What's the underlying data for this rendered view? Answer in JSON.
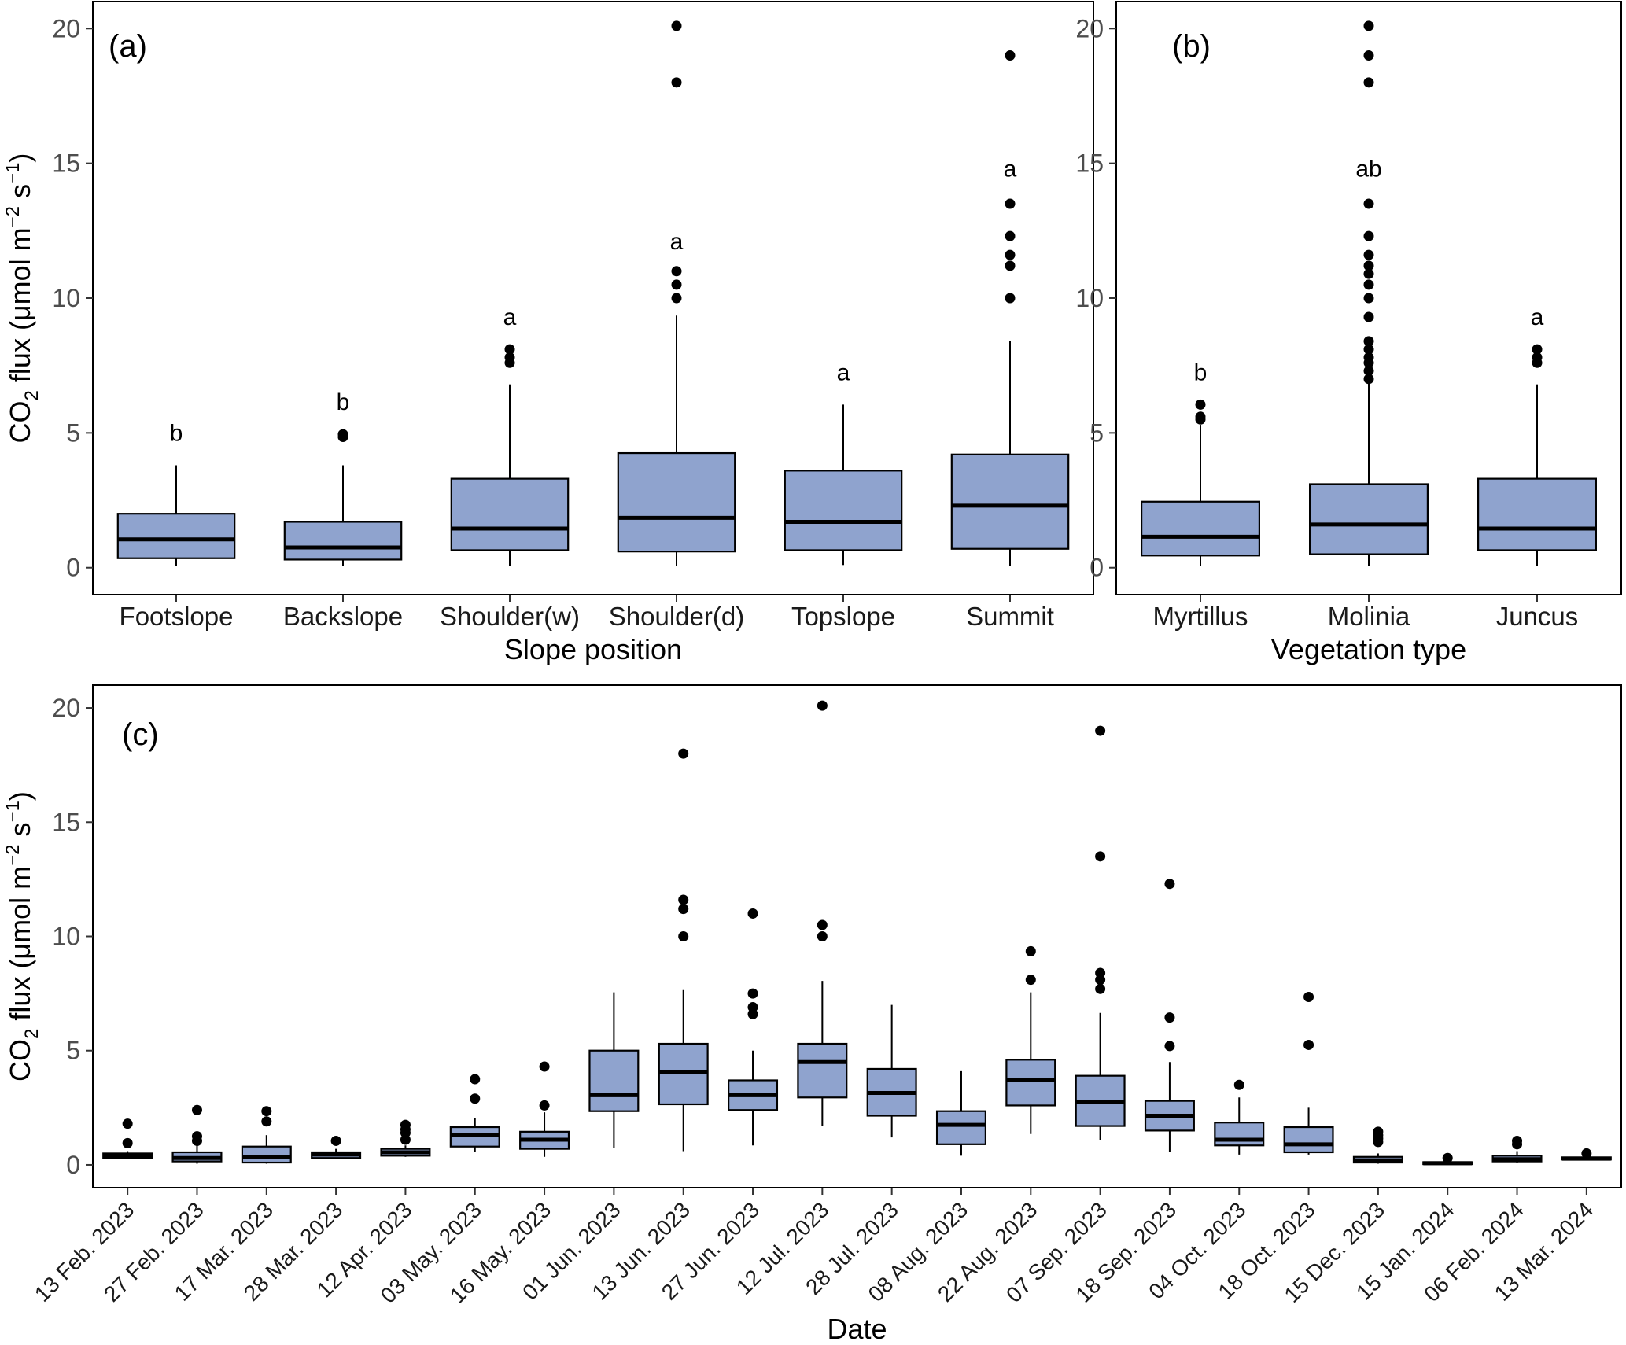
{
  "colors": {
    "box_fill": "#8FA3CE",
    "box_stroke": "#000000",
    "point": "#000000"
  },
  "chart_data": [
    {
      "panel": "(a)",
      "type": "boxplot",
      "xlabel": "Slope position",
      "ylabel": "CO2 flux (μmol m−2 s−1)",
      "ylim": [
        -1,
        21
      ],
      "yticks": [
        0,
        5,
        10,
        15,
        20
      ],
      "categories": [
        "Footslope",
        "Backslope",
        "Shoulder(w)",
        "Shoulder(d)",
        "Topslope",
        "Summit"
      ],
      "boxes": [
        {
          "lo": 0.05,
          "q1": 0.35,
          "med": 1.05,
          "q3": 2.0,
          "hi": 3.8,
          "out": [],
          "sig": "b"
        },
        {
          "lo": 0.05,
          "q1": 0.3,
          "med": 0.75,
          "q3": 1.7,
          "hi": 3.8,
          "out": [
            4.85,
            4.95
          ],
          "sig": "b"
        },
        {
          "lo": 0.05,
          "q1": 0.65,
          "med": 1.45,
          "q3": 3.3,
          "hi": 6.8,
          "out": [
            7.6,
            7.8,
            8.1
          ],
          "sig": "a"
        },
        {
          "lo": 0.05,
          "q1": 0.6,
          "med": 1.85,
          "q3": 4.25,
          "hi": 9.35,
          "out": [
            10.0,
            10.5,
            11.0,
            18.0,
            20.1
          ],
          "sig": "a"
        },
        {
          "lo": 0.1,
          "q1": 0.65,
          "med": 1.7,
          "q3": 3.6,
          "hi": 6.05,
          "out": [],
          "sig": "a"
        },
        {
          "lo": 0.05,
          "q1": 0.7,
          "med": 2.3,
          "q3": 4.2,
          "hi": 8.4,
          "out": [
            10.0,
            11.2,
            11.6,
            12.3,
            13.5,
            19.0
          ],
          "sig": "a"
        }
      ]
    },
    {
      "panel": "(b)",
      "type": "boxplot",
      "xlabel": "Vegetation type",
      "ylabel": "",
      "ylim": [
        -1,
        21
      ],
      "yticks": [
        0,
        5,
        10,
        15,
        20
      ],
      "categories": [
        "Myrtillus",
        "Molinia",
        "Juncus"
      ],
      "boxes": [
        {
          "lo": 0.05,
          "q1": 0.45,
          "med": 1.15,
          "q3": 2.45,
          "hi": 5.3,
          "out": [
            5.5,
            5.6,
            6.05
          ],
          "sig": "b"
        },
        {
          "lo": 0.05,
          "q1": 0.5,
          "med": 1.6,
          "q3": 3.1,
          "hi": 6.9,
          "out": [
            7.0,
            7.3,
            7.6,
            7.8,
            8.1,
            8.4,
            9.3,
            10.0,
            10.5,
            10.9,
            11.2,
            11.6,
            12.3,
            13.5,
            18.0,
            19.0,
            20.1
          ],
          "sig": "ab"
        },
        {
          "lo": 0.05,
          "q1": 0.65,
          "med": 1.45,
          "q3": 3.3,
          "hi": 6.8,
          "out": [
            7.6,
            7.8,
            8.1
          ],
          "sig": "a"
        }
      ]
    },
    {
      "panel": "(c)",
      "type": "boxplot",
      "xlabel": "Date",
      "ylabel": "CO2 flux (μmol m−2 s−1)",
      "ylim": [
        -1,
        21
      ],
      "yticks": [
        0,
        5,
        10,
        15,
        20
      ],
      "categories": [
        "13 Feb. 2023",
        "27 Feb. 2023",
        "17 Mar. 2023",
        "28 Mar. 2023",
        "12 Apr. 2023",
        "03 May. 2023",
        "16 May. 2023",
        "01 Jun. 2023",
        "13 Jun. 2023",
        "27 Jun. 2023",
        "12 Jul. 2023",
        "28 Jul. 2023",
        "08 Aug. 2023",
        "22 Aug. 2023",
        "07 Sep. 2023",
        "18 Sep. 2023",
        "04 Oct. 2023",
        "18 Oct. 2023",
        "15 Dec. 2023",
        "15 Jan. 2024",
        "06 Feb. 2024",
        "13 Mar. 2024"
      ],
      "boxes": [
        {
          "lo": 0.25,
          "q1": 0.3,
          "med": 0.4,
          "q3": 0.5,
          "hi": 0.6,
          "out": [
            0.95,
            1.8
          ]
        },
        {
          "lo": 0.05,
          "q1": 0.15,
          "med": 0.3,
          "q3": 0.55,
          "hi": 0.9,
          "out": [
            1.05,
            1.25,
            2.4
          ]
        },
        {
          "lo": 0.05,
          "q1": 0.1,
          "med": 0.35,
          "q3": 0.8,
          "hi": 1.3,
          "out": [
            1.9,
            2.35
          ]
        },
        {
          "lo": 0.25,
          "q1": 0.3,
          "med": 0.45,
          "q3": 0.55,
          "hi": 0.7,
          "out": [
            1.05
          ]
        },
        {
          "lo": 0.35,
          "q1": 0.4,
          "med": 0.55,
          "q3": 0.7,
          "hi": 0.85,
          "out": [
            1.1,
            1.4,
            1.55,
            1.75
          ]
        },
        {
          "lo": 0.55,
          "q1": 0.8,
          "med": 1.3,
          "q3": 1.65,
          "hi": 2.05,
          "out": [
            2.9,
            3.75
          ]
        },
        {
          "lo": 0.35,
          "q1": 0.7,
          "med": 1.1,
          "q3": 1.45,
          "hi": 2.3,
          "out": [
            2.6,
            4.3
          ]
        },
        {
          "lo": 0.75,
          "q1": 2.35,
          "med": 3.05,
          "q3": 5.0,
          "hi": 7.55,
          "out": []
        },
        {
          "lo": 0.6,
          "q1": 2.65,
          "med": 4.05,
          "q3": 5.3,
          "hi": 7.65,
          "out": [
            10.0,
            11.2,
            11.6,
            18.0
          ]
        },
        {
          "lo": 0.85,
          "q1": 2.4,
          "med": 3.05,
          "q3": 3.7,
          "hi": 5.0,
          "out": [
            6.6,
            6.9,
            7.5,
            11.0
          ]
        },
        {
          "lo": 1.7,
          "q1": 2.95,
          "med": 4.5,
          "q3": 5.3,
          "hi": 8.05,
          "out": [
            10.0,
            10.5,
            20.1
          ]
        },
        {
          "lo": 1.2,
          "q1": 2.15,
          "med": 3.15,
          "q3": 4.2,
          "hi": 7.0,
          "out": []
        },
        {
          "lo": 0.4,
          "q1": 0.9,
          "med": 1.75,
          "q3": 2.35,
          "hi": 4.1,
          "out": []
        },
        {
          "lo": 1.35,
          "q1": 2.6,
          "med": 3.7,
          "q3": 4.6,
          "hi": 7.55,
          "out": [
            8.1,
            9.35
          ]
        },
        {
          "lo": 1.1,
          "q1": 1.7,
          "med": 2.75,
          "q3": 3.9,
          "hi": 6.65,
          "out": [
            7.7,
            8.1,
            8.4,
            13.5,
            19.0
          ]
        },
        {
          "lo": 0.55,
          "q1": 1.5,
          "med": 2.15,
          "q3": 2.8,
          "hi": 4.5,
          "out": [
            5.2,
            6.45,
            12.3
          ]
        },
        {
          "lo": 0.45,
          "q1": 0.85,
          "med": 1.1,
          "q3": 1.85,
          "hi": 2.95,
          "out": [
            3.5
          ]
        },
        {
          "lo": 0.45,
          "q1": 0.55,
          "med": 0.9,
          "q3": 1.65,
          "hi": 2.5,
          "out": [
            5.25,
            7.35
          ]
        },
        {
          "lo": 0.05,
          "q1": 0.1,
          "med": 0.2,
          "q3": 0.35,
          "hi": 0.5,
          "out": [
            1.0,
            1.15,
            1.3,
            1.45
          ]
        },
        {
          "lo": 0.0,
          "q1": 0.03,
          "med": 0.07,
          "q3": 0.12,
          "hi": 0.2,
          "out": [
            0.3
          ]
        },
        {
          "lo": 0.1,
          "q1": 0.15,
          "med": 0.25,
          "q3": 0.4,
          "hi": 0.6,
          "out": [
            0.9,
            1.05
          ]
        },
        {
          "lo": 0.2,
          "q1": 0.23,
          "med": 0.27,
          "q3": 0.33,
          "hi": 0.38,
          "out": [
            0.5
          ]
        }
      ]
    }
  ]
}
